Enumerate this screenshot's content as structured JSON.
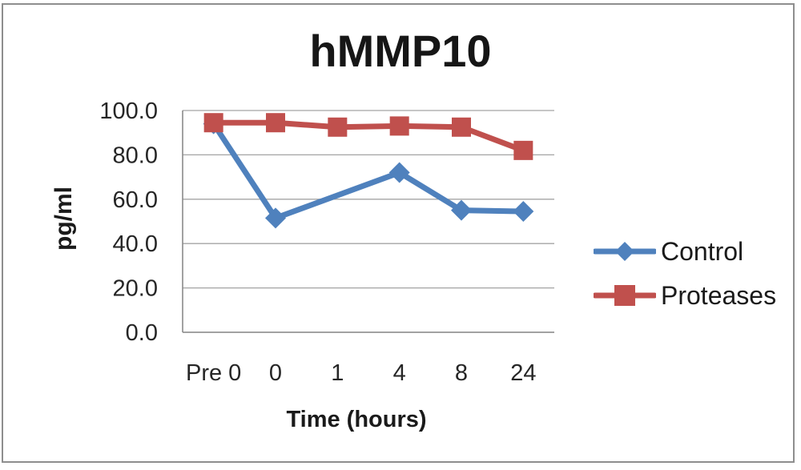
{
  "chart_data": {
    "type": "line",
    "title": "hMMP10",
    "ylabel": "pg/ml",
    "xlabel": "Time (hours)",
    "categories": [
      "Pre 0",
      "0",
      "1",
      "4",
      "8",
      "24"
    ],
    "yticks": {
      "values": [
        0,
        20,
        40,
        60,
        80,
        100
      ],
      "labels": [
        "0.0",
        "20.0",
        "40.0",
        "60.0",
        "80.0",
        "100.0"
      ]
    },
    "ylim": [
      0,
      100
    ],
    "grid": "horizontal",
    "legend_position": "right",
    "series": [
      {
        "name": "Control",
        "color": "#4F81BD",
        "marker": "diamond",
        "values": [
          94,
          51.5,
          null,
          72,
          55,
          54.5
        ]
      },
      {
        "name": "Proteases",
        "color": "#C0504D",
        "marker": "square",
        "values": [
          94.5,
          94.5,
          92.5,
          93,
          92.5,
          82
        ]
      }
    ],
    "colors": {
      "gridline": "#a4a4a4",
      "axis": "#8a8a8a",
      "border": "#8e8e8e",
      "text": "#262626"
    }
  }
}
